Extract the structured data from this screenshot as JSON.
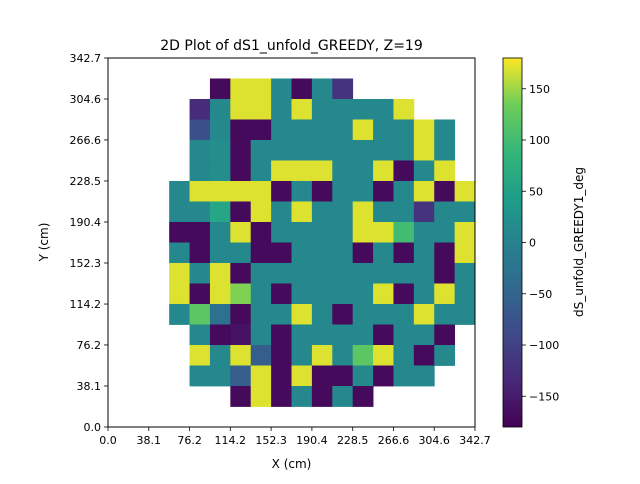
{
  "chart_data": {
    "type": "heatmap",
    "title": "2D Plot of dS1_unfold_GREEDY, Z=19",
    "xlabel": "X (cm)",
    "ylabel": "Y (cm)",
    "colorbar_label": "dS_unfold_GREEDY1_deg",
    "colormap": "viridis",
    "xlim": [
      0.0,
      342.7
    ],
    "ylim": [
      0.0,
      342.7
    ],
    "xticks": [
      "0.0",
      "38.1",
      "76.2",
      "114.2",
      "152.3",
      "190.4",
      "228.5",
      "266.6",
      "304.6",
      "342.7"
    ],
    "yticks": [
      "0.0",
      "38.1",
      "76.2",
      "114.2",
      "152.3",
      "190.4",
      "228.5",
      "266.6",
      "304.6",
      "342.7"
    ],
    "colorbar_range": [
      -180,
      180
    ],
    "colorbar_ticks": [
      "150",
      "100",
      "50",
      "0",
      "−50",
      "−100",
      "−150"
    ],
    "colorbar_tick_values": [
      150,
      100,
      50,
      0,
      -50,
      -100,
      -150
    ],
    "nx": 18,
    "ny": 18,
    "cell_size": 19.04,
    "rows_top_to_bottom": [
      [
        null,
        null,
        null,
        null,
        null,
        null,
        null,
        null,
        null,
        null,
        null,
        null,
        null,
        null,
        null,
        null,
        null,
        null
      ],
      [
        null,
        null,
        null,
        null,
        null,
        -170,
        170,
        170,
        10,
        -170,
        10,
        -120,
        null,
        null,
        null,
        null,
        null,
        null
      ],
      [
        null,
        null,
        null,
        null,
        -130,
        10,
        170,
        170,
        10,
        170,
        10,
        10,
        10,
        10,
        170,
        null,
        null,
        null
      ],
      [
        null,
        null,
        null,
        null,
        -80,
        10,
        -170,
        -170,
        10,
        10,
        10,
        10,
        170,
        10,
        10,
        170,
        10,
        null
      ],
      [
        null,
        null,
        null,
        null,
        10,
        20,
        -170,
        10,
        10,
        10,
        10,
        10,
        10,
        10,
        10,
        170,
        10,
        null
      ],
      [
        null,
        null,
        null,
        null,
        10,
        20,
        -170,
        10,
        170,
        170,
        170,
        10,
        10,
        170,
        -170,
        10,
        170,
        null
      ],
      [
        null,
        null,
        null,
        10,
        170,
        170,
        170,
        170,
        -170,
        10,
        -170,
        10,
        10,
        -170,
        10,
        170,
        -170,
        170
      ],
      [
        null,
        null,
        null,
        10,
        10,
        60,
        -170,
        170,
        10,
        170,
        10,
        10,
        170,
        10,
        10,
        -120,
        10,
        10
      ],
      [
        null,
        null,
        null,
        -170,
        -170,
        10,
        170,
        -170,
        10,
        10,
        10,
        10,
        170,
        170,
        100,
        10,
        10,
        170
      ],
      [
        null,
        null,
        null,
        10,
        -170,
        10,
        10,
        -170,
        -170,
        10,
        10,
        10,
        -170,
        10,
        -170,
        10,
        -170,
        170
      ],
      [
        null,
        null,
        null,
        170,
        10,
        170,
        -170,
        10,
        10,
        10,
        10,
        10,
        10,
        10,
        10,
        10,
        -170,
        10
      ],
      [
        null,
        null,
        null,
        170,
        -170,
        170,
        140,
        10,
        -170,
        10,
        10,
        10,
        10,
        170,
        -170,
        10,
        170,
        10
      ],
      [
        null,
        null,
        null,
        10,
        120,
        -30,
        -170,
        10,
        10,
        170,
        10,
        -170,
        10,
        10,
        10,
        170,
        10,
        10
      ],
      [
        null,
        null,
        null,
        null,
        10,
        -170,
        -160,
        10,
        -170,
        10,
        10,
        10,
        10,
        -170,
        10,
        10,
        -170,
        null
      ],
      [
        null,
        null,
        null,
        null,
        170,
        10,
        170,
        -60,
        -170,
        10,
        170,
        10,
        120,
        170,
        10,
        -170,
        10,
        null
      ],
      [
        null,
        null,
        null,
        null,
        10,
        10,
        -60,
        170,
        -170,
        170,
        -170,
        -170,
        10,
        -170,
        10,
        10,
        null,
        null
      ],
      [
        null,
        null,
        null,
        null,
        null,
        null,
        -170,
        170,
        -170,
        10,
        -170,
        10,
        -170,
        null,
        null,
        null,
        null,
        null
      ],
      [
        null,
        null,
        null,
        null,
        null,
        null,
        null,
        null,
        null,
        null,
        null,
        null,
        null,
        null,
        null,
        null,
        null,
        null
      ]
    ]
  }
}
